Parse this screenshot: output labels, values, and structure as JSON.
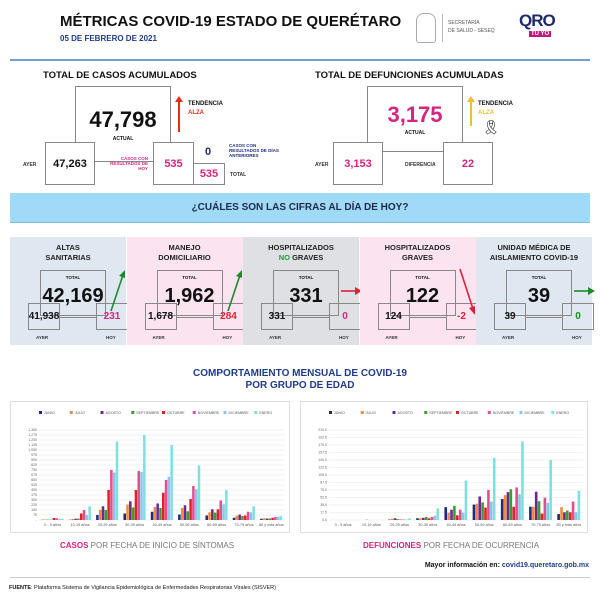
{
  "header": {
    "title": "MÉTRICAS COVID-19 ESTADO DE QUERÉTARO",
    "date": "05 DE FEBRERO DE 2021",
    "secretaria": "SECRETARÍA",
    "salud": "DE SALUD - SESEQ",
    "logo_oro": "QRO",
    "logo_tuyo": "TÚ YO",
    "accent": "#1f3c8a"
  },
  "casos": {
    "title": "TOTAL DE CASOS ACUMULADOS",
    "actual": "47,798",
    "actual_label": "ACTUAL",
    "tendencia": "TENDENCIA",
    "tendencia_val": "ALZA",
    "ayer_label": "AYER",
    "ayer": "47,263",
    "hoy_label": "CASOS CON RESULTADOS DE HOY",
    "hoy": "535",
    "anteriores": "0",
    "anteriores_label": "CASOS CON RESULTADOS DE DÍAS ANTERIORES",
    "total": "535",
    "total_label": "TOTAL"
  },
  "defunciones": {
    "title": "TOTAL DE DEFUNCIONES ACUMULADAS",
    "actual": "3,175",
    "actual_label": "ACTUAL",
    "tendencia": "TENDENCIA",
    "tendencia_val": "ALZA",
    "ayer_label": "AYER",
    "ayer": "3,153",
    "dif_label": "DIFERENCIA",
    "dif": "22"
  },
  "banner": "¿CUÁLES SON LAS CIFRAS AL DÍA DE HOY?",
  "panels": [
    {
      "t1": "ALTAS",
      "t2": "SANITARIAS",
      "total_label": "TOTAL",
      "total": "42,169",
      "ayer": "41,938",
      "hoy": "231",
      "ayer_label": "AYER",
      "hoy_label": "HOY",
      "bg": "#dfe7f0",
      "hoy_color": "#d6257f",
      "trend": "up",
      "trend_color": "#1d8a2a"
    },
    {
      "t1": "MANEJO",
      "t2": "DOMICILIARIO",
      "total_label": "TOTAL",
      "total": "1,962",
      "ayer": "1,678",
      "hoy": "284",
      "ayer_label": "AYER",
      "hoy_label": "HOY",
      "bg": "#fbe4ef",
      "hoy_color": "#e0203a",
      "trend": "up",
      "trend_color": "#1d8a2a"
    },
    {
      "t1": "HOSPITALIZADOS",
      "t2a": "NO",
      "t2": " GRAVES",
      "total_label": "TOTAL",
      "total": "331",
      "ayer": "331",
      "hoy": "0",
      "ayer_label": "AYER",
      "hoy_label": "HOY",
      "bg": "#dfe0e4",
      "hoy_color": "#d6257f",
      "trend": "flat",
      "trend_color": "#e0203a"
    },
    {
      "t1": "HOSPITALIZADOS",
      "t2": "GRAVES",
      "total_label": "TOTAL",
      "total": "122",
      "ayer": "124",
      "hoy": "-2",
      "ayer_label": "AYER",
      "hoy_label": "HOY",
      "bg": "#fbe4ef",
      "hoy_color": "#e0203a",
      "trend": "down",
      "trend_color": "#e0203a"
    },
    {
      "t1": "UNIDAD MÉDICA DE",
      "t2": "AISLAMIENTO COVID-19",
      "total_label": "TOTAL",
      "total": "39",
      "ayer": "39",
      "hoy": "0",
      "ayer_label": "AYER",
      "hoy_label": "HOY",
      "bg": "#dfe7f0",
      "hoy_color": "#1d8a2a",
      "trend": "flat",
      "trend_color": "#1d8a2a"
    }
  ],
  "section": {
    "title1": "COMPORTAMIENTO MENSUAL DE COVID-19",
    "title2": "POR GRUPO DE EDAD"
  },
  "captions": {
    "casos_a": "CASOS",
    "casos_b": " POR FECHA DE INICIO DE SÍNTOMAS",
    "def_a": "DEFUNCIONES",
    "def_b": " POR FECHA DE OCURRENCIA"
  },
  "footer": {
    "mas": "Mayor información en:",
    "url": "covid19.queretaro.gob.mx",
    "fuente_a": "FUENTE",
    "fuente_b": ": Plataforma Sistema  de Vigilancia Epidemiológica de Enfermedades Respiratorias Virales (SISVER)"
  },
  "chart_data": [
    {
      "type": "bar",
      "categories": [
        "0 - 9 años",
        "10-19 años",
        "20-29 años",
        "30-39 años",
        "40-49 años",
        "50-59 años",
        "60-69 años",
        "70-79 años",
        "80 y más años"
      ],
      "ylim": [
        0,
        1350
      ],
      "ytick_step": 75,
      "grid": true,
      "legend": "top",
      "series": [
        {
          "name": "JUNIO",
          "color": "#1f2a7a",
          "values": [
            4,
            4,
            75,
            98,
            124,
            82,
            68,
            34,
            19
          ]
        },
        {
          "name": "JULIO",
          "color": "#f28c3c",
          "values": [
            8,
            15,
            150,
            232,
            195,
            180,
            116,
            64,
            26
          ]
        },
        {
          "name": "AGOSTO",
          "color": "#6a2b8e",
          "values": [
            4,
            19,
            206,
            281,
            248,
            221,
            161,
            82,
            22
          ]
        },
        {
          "name": "SEPTIEMBRE",
          "color": "#3e9c35",
          "values": [
            4,
            22,
            150,
            188,
            180,
            131,
            112,
            60,
            22
          ]
        },
        {
          "name": "OCTUBRE",
          "color": "#e0202a",
          "values": [
            30,
            98,
            450,
            450,
            409,
            315,
            161,
            68,
            34
          ]
        },
        {
          "name": "NOVIEMBRE",
          "color": "#e0508f",
          "values": [
            26,
            150,
            750,
            735,
            600,
            510,
            292,
            124,
            45
          ]
        },
        {
          "name": "DICIEMBRE",
          "color": "#8fc3ea",
          "values": [
            19,
            75,
            712,
            720,
            649,
            461,
            236,
            116,
            49
          ]
        },
        {
          "name": "ENERO",
          "color": "#7fe0e0",
          "values": [
            19,
            206,
            1178,
            1275,
            1125,
            818,
            450,
            206,
            56
          ]
        }
      ]
    },
    {
      "type": "bar",
      "categories": [
        "0 - 9 años",
        "10-19 años",
        "20-29 años",
        "30-39 años",
        "40-49 años",
        "50-59 años",
        "60-69 años",
        "70-79 años",
        "80 y más años"
      ],
      "ylim": [
        0,
        210
      ],
      "ytick_step": 17.5,
      "grid": true,
      "legend": "top",
      "series": [
        {
          "name": "JUNIO",
          "color": "#1f2a7a",
          "values": [
            0,
            0,
            1,
            4,
            30,
            36,
            49,
            31,
            14
          ]
        },
        {
          "name": "JULIO",
          "color": "#f28c3c",
          "values": [
            0,
            0,
            3,
            4,
            17,
            38,
            58,
            31,
            30
          ]
        },
        {
          "name": "AGOSTO",
          "color": "#6a2b8e",
          "values": [
            0,
            0.5,
            4,
            5,
            24,
            55,
            65,
            66,
            18
          ]
        },
        {
          "name": "SEPTIEMBRE",
          "color": "#3e9c35",
          "values": [
            0,
            0,
            2,
            7,
            33,
            41,
            72,
            44,
            22
          ]
        },
        {
          "name": "OCTUBRE",
          "color": "#e0202a",
          "values": [
            0,
            0,
            1,
            4,
            11,
            29,
            31,
            15,
            18
          ]
        },
        {
          "name": "NOVIEMBRE",
          "color": "#e0508f",
          "values": [
            0,
            0,
            1,
            7,
            24,
            70,
            76,
            52,
            43
          ]
        },
        {
          "name": "DICIEMBRE",
          "color": "#8fc3ea",
          "values": [
            0,
            0,
            1,
            10,
            17,
            43,
            60,
            40,
            18
          ]
        },
        {
          "name": "ENERO",
          "color": "#7fe0e0",
          "values": [
            0,
            0,
            4,
            27,
            92,
            145,
            183,
            140,
            68
          ]
        }
      ]
    }
  ]
}
